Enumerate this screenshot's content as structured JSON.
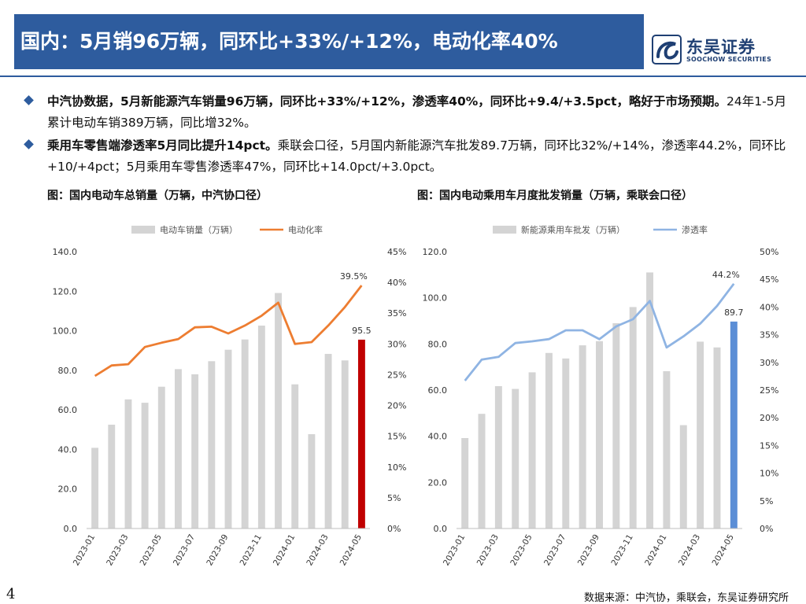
{
  "header": {
    "title": "国内：5月销96万辆，同环比+33%/+12%，电动化率40%",
    "logo_cn": "东吴证券",
    "logo_en": "SOOCHOW SECURITIES"
  },
  "bullets": [
    {
      "bold": "中汽协数据，5月新能源汽车销量96万辆，同环比+33%/+12%，渗透率40%，同环比+9.4/+3.5pct，略好于市场预期。",
      "normal": "24年1-5月累计电动车销389万辆，同比增32%。"
    },
    {
      "bold": "乘用车零售端渗透率5月同比提升14pct。",
      "normal": "乘联会口径，5月国内新能源汽车批发89.7万辆，同环比32%/+14%，渗透率44.2%，同环比+10/+4pct；5月乘用车零售渗透率47%，同环比+14.0pct/+3.0pct。"
    }
  ],
  "charts_titles": {
    "left": "图：国内电动车总销量（万辆，中汽协口径）",
    "right": "图：国内电动乘用车月度批发销量（万辆，乘联会口径）"
  },
  "chart_data": [
    {
      "type": "bar",
      "title": "图：国内电动车总销量（万辆，中汽协口径）",
      "legend": [
        "电动车销量（万辆）",
        "电动化率"
      ],
      "categories": [
        "2023-01",
        "2023-02",
        "2023-03",
        "2023-04",
        "2023-05",
        "2023-06",
        "2023-07",
        "2023-08",
        "2023-09",
        "2023-10",
        "2023-11",
        "2023-12",
        "2024-01",
        "2024-02",
        "2024-03",
        "2024-04",
        "2024-05"
      ],
      "x_tick_labels": [
        "2023-01",
        "2023-03",
        "2023-05",
        "2023-07",
        "2023-09",
        "2023-11",
        "2024-01",
        "2024-03",
        "2024-05"
      ],
      "series": [
        {
          "name": "电动车销量（万辆）",
          "axis": "left",
          "values": [
            40.8,
            52.5,
            65.3,
            63.6,
            71.7,
            80.6,
            78.0,
            84.6,
            90.4,
            95.6,
            102.6,
            119.1,
            72.9,
            47.7,
            88.3,
            85.0,
            95.5
          ]
        },
        {
          "name": "电动化率",
          "axis": "right",
          "values": [
            24.8,
            26.5,
            26.7,
            29.5,
            30.2,
            30.8,
            32.7,
            32.8,
            31.7,
            33.0,
            34.6,
            36.7,
            30.0,
            30.3,
            33.0,
            36.0,
            39.5
          ]
        }
      ],
      "y_left": {
        "min": 0,
        "max": 140,
        "ticks": [
          "0.0",
          "20.0",
          "40.0",
          "60.0",
          "80.0",
          "100.0",
          "120.0",
          "140.0"
        ]
      },
      "y_right": {
        "min": 0,
        "max": 45,
        "ticks": [
          "0%",
          "5%",
          "10%",
          "15%",
          "20%",
          "25%",
          "30%",
          "35%",
          "40%",
          "45%"
        ]
      },
      "labels": {
        "last_bar": "95.5",
        "last_line": "39.5%"
      },
      "colors": {
        "bar": "#d4d4d4",
        "highlight_bar": "#c00000",
        "line": "#ed7d31"
      }
    },
    {
      "type": "bar",
      "title": "图：国内电动乘用车月度批发销量（万辆，乘联会口径）",
      "legend": [
        "新能源乘用车批发（万辆）",
        "渗透率"
      ],
      "categories": [
        "2023-01",
        "2023-02",
        "2023-03",
        "2023-04",
        "2023-05",
        "2023-06",
        "2023-07",
        "2023-08",
        "2023-09",
        "2023-10",
        "2023-11",
        "2023-12",
        "2024-01",
        "2024-02",
        "2024-03",
        "2024-04",
        "2024-05"
      ],
      "x_tick_labels": [
        "2023-01",
        "2023-03",
        "2023-05",
        "2023-07",
        "2023-09",
        "2023-11",
        "2024-01",
        "2024-03",
        "2024-05"
      ],
      "series": [
        {
          "name": "新能源乘用车批发（万辆）",
          "axis": "left",
          "values": [
            39.2,
            49.7,
            61.7,
            60.5,
            67.7,
            76.1,
            73.7,
            79.4,
            81.2,
            89.0,
            96.0,
            111.0,
            68.2,
            44.8,
            81.0,
            78.5,
            89.7
          ]
        },
        {
          "name": "渗透率",
          "axis": "right",
          "values": [
            26.7,
            30.5,
            31.0,
            33.5,
            33.8,
            34.2,
            35.8,
            35.8,
            34.2,
            36.5,
            37.8,
            41.1,
            32.7,
            34.7,
            37.0,
            40.2,
            44.2
          ]
        }
      ],
      "y_left": {
        "min": 0,
        "max": 120,
        "ticks": [
          "0.0",
          "20.0",
          "40.0",
          "60.0",
          "80.0",
          "100.0",
          "120.0"
        ]
      },
      "y_right": {
        "min": 0,
        "max": 50,
        "ticks": [
          "0%",
          "5%",
          "10%",
          "15%",
          "20%",
          "25%",
          "30%",
          "35%",
          "40%",
          "45%",
          "50%"
        ]
      },
      "labels": {
        "last_bar": "89.7",
        "last_line": "44.2%"
      },
      "colors": {
        "bar": "#d4d4d4",
        "highlight_bar": "#5b8ed6",
        "line": "#8fb4e3"
      }
    }
  ],
  "footer": {
    "page": "4",
    "source": "数据来源：中汽协，乘联会，东吴证券研究所"
  }
}
